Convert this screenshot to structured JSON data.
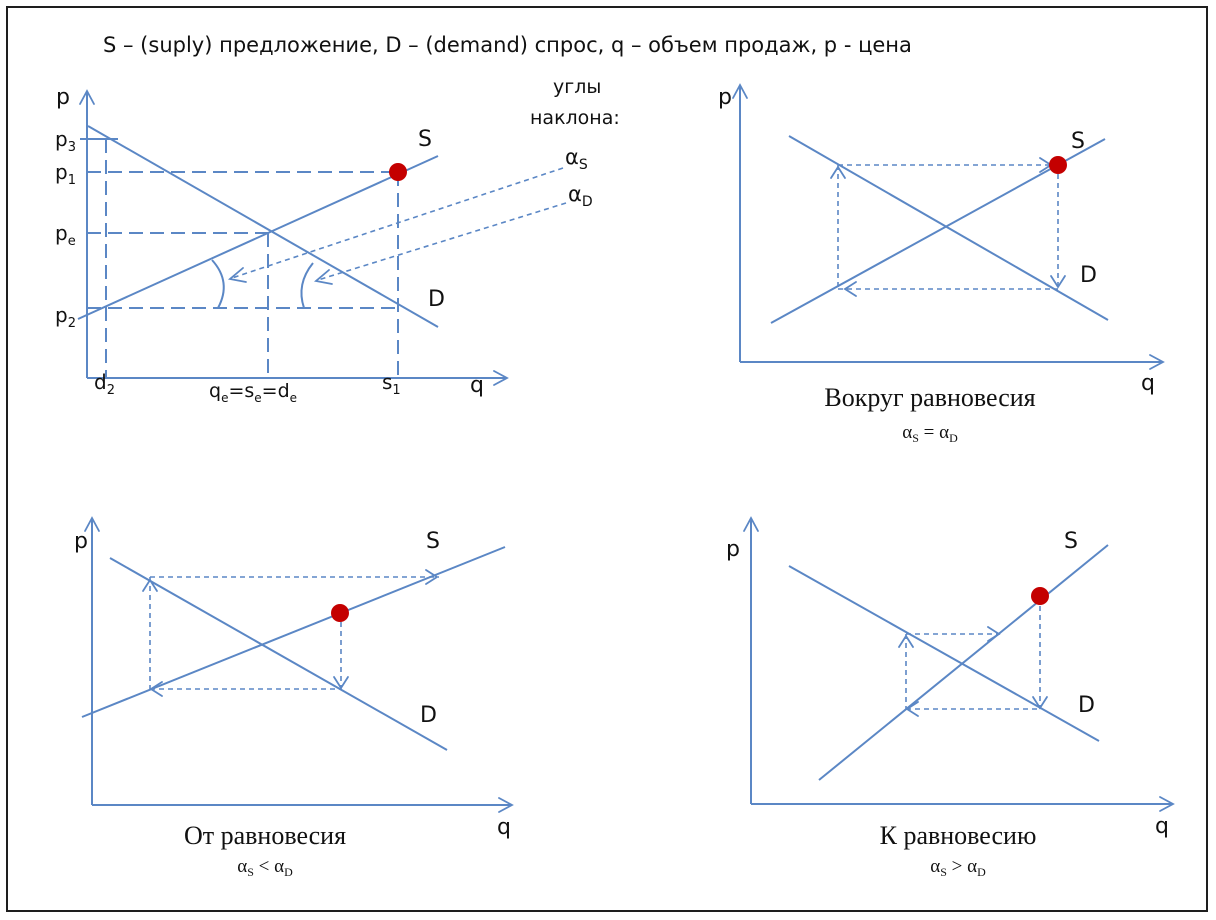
{
  "header": {
    "text": "S – (suply) предложение,  D – (demand) спрос, q – объем продаж, p - цена"
  },
  "colors": {
    "line": "#5b87c5",
    "point": "#c40000",
    "text": "#111111",
    "border": "#1e1e1e"
  },
  "panel1": {
    "axis_p": "p",
    "axis_q": "q",
    "supply_label": "S",
    "demand_label": "D",
    "angles_title_1": "углы",
    "angles_title_2": "наклона:",
    "alpha": "α",
    "sub_s": "S",
    "sub_d": "D",
    "p3_base": "p",
    "p3_sub": "3",
    "p1_base": "p",
    "p1_sub": "1",
    "pe_base": "p",
    "pe_sub": "e",
    "p2_base": "p",
    "p2_sub": "2",
    "d2_base": "d",
    "d2_sub": "2",
    "s1_base": "s",
    "s1_sub": "1",
    "qe_q": "q",
    "qe_e1": "e",
    "qe_eq1": "=s",
    "qe_e2": "e",
    "qe_eq2": "=d",
    "qe_e3": "e"
  },
  "panel2": {
    "axis_p": "p",
    "axis_q": "q",
    "supply_label": "S",
    "demand_label": "D",
    "title": "Вокруг равновесия",
    "cond_a1": "α",
    "cond_s1": "S",
    "cond_op": " = ",
    "cond_a2": "α",
    "cond_s2": "D"
  },
  "panel3": {
    "axis_p": "p",
    "axis_q": "q",
    "supply_label": "S",
    "demand_label": "D",
    "title": "От равновесия",
    "cond_a1": "α",
    "cond_s1": "S",
    "cond_op": " < ",
    "cond_a2": "α",
    "cond_s2": "D"
  },
  "panel4": {
    "axis_p": "p",
    "axis_q": "q",
    "supply_label": "S",
    "demand_label": "D",
    "title": "К равновесию",
    "cond_a1": "α",
    "cond_s1": "S",
    "cond_op": " > ",
    "cond_a2": "α",
    "cond_s2": "D"
  }
}
